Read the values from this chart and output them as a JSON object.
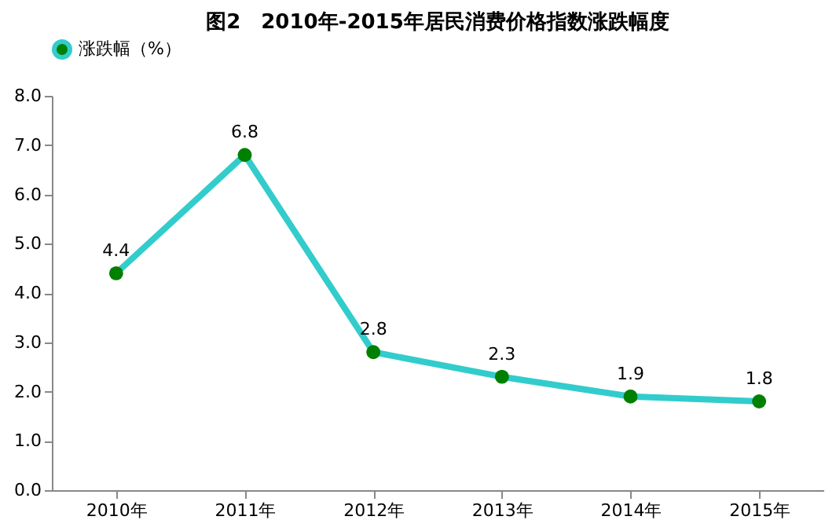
{
  "chart_data": {
    "type": "line",
    "title": "图2　2010年-2015年居民消费价格指数涨跌幅度",
    "categories": [
      "2010年",
      "2011年",
      "2012年",
      "2013年",
      "2014年",
      "2015年"
    ],
    "series": [
      {
        "name": "涨跌幅（%）",
        "color": "#33cccc",
        "values": [
          4.4,
          6.8,
          2.8,
          2.3,
          1.9,
          1.8
        ]
      }
    ],
    "ylim": [
      0,
      8
    ],
    "yticks": [
      {
        "value": 0,
        "label": "0.0"
      },
      {
        "value": 1,
        "label": "1.0"
      },
      {
        "value": 2,
        "label": "2.0"
      },
      {
        "value": 3,
        "label": "3.0"
      },
      {
        "value": 4,
        "label": "4.0"
      },
      {
        "value": 5,
        "label": "5.0"
      },
      {
        "value": 6,
        "label": "6.0"
      },
      {
        "value": 7,
        "label": "7.0"
      },
      {
        "value": 8,
        "label": "8.0"
      }
    ],
    "data_labels": true,
    "marker": "circle",
    "line_style": "solid",
    "grid": false,
    "legend": "top"
  }
}
